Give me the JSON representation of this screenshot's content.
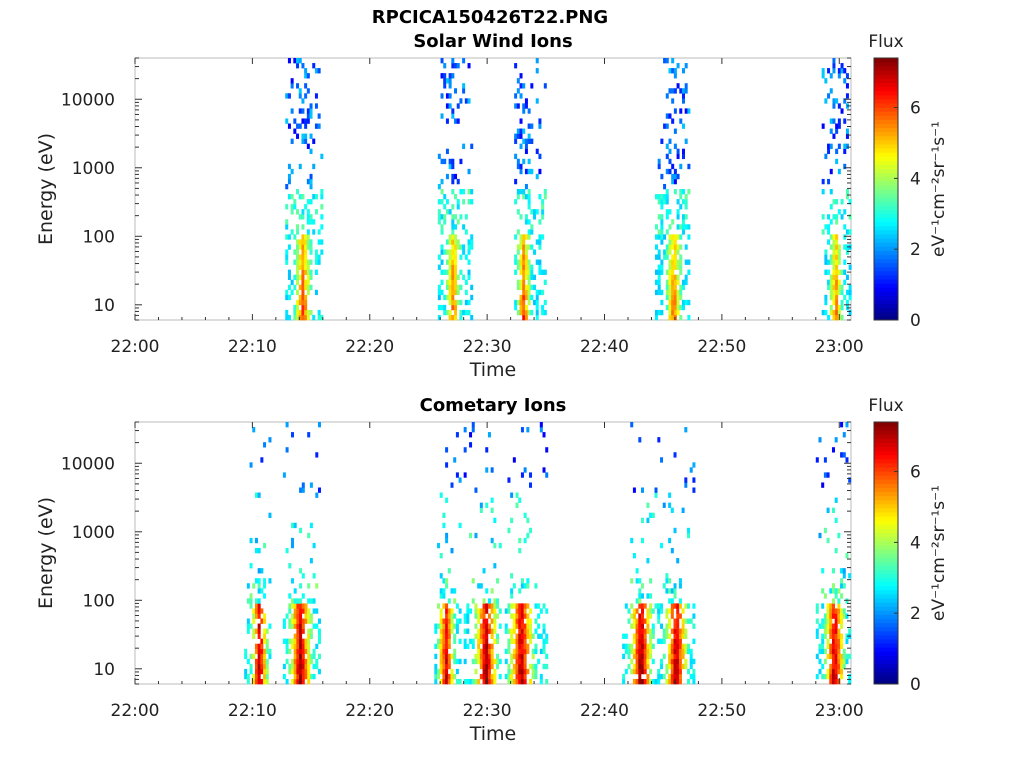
{
  "figure_title": "RPCICA150426T22.PNG",
  "chart_data": [
    {
      "type": "heatmap",
      "title": "Solar Wind Ions",
      "xlabel": "Time",
      "ylabel": "Energy (eV)",
      "x_ticks": [
        "22:00",
        "22:10",
        "22:20",
        "22:30",
        "22:40",
        "22:50",
        "23:00"
      ],
      "x_range_minutes": [
        0,
        61
      ],
      "y_scale": "log",
      "y_ticks": [
        10,
        100,
        1000,
        10000
      ],
      "y_tick_labels": [
        "10",
        "100",
        "1000",
        "10000"
      ],
      "y_range": [
        6,
        40000
      ],
      "colorbar": {
        "label": "Flux",
        "units": "eV⁻¹cm⁻²sr⁻¹s⁻¹",
        "range": [
          0,
          7.4
        ],
        "ticks": [
          0,
          2,
          4,
          6
        ],
        "colormap": "jet"
      },
      "bursts": [
        {
          "start_min": 12.8,
          "end_min": 16.0,
          "core_min": 14.2,
          "peak_flux": 5.8
        },
        {
          "start_min": 25.8,
          "end_min": 28.6,
          "core_min": 27.0,
          "peak_flux": 5.5
        },
        {
          "start_min": 32.3,
          "end_min": 35.0,
          "core_min": 33.0,
          "peak_flux": 5.8
        },
        {
          "start_min": 44.3,
          "end_min": 47.2,
          "core_min": 45.8,
          "peak_flux": 5.6
        },
        {
          "start_min": 58.5,
          "end_min": 61.0,
          "core_min": 59.6,
          "peak_flux": 5.4
        }
      ]
    },
    {
      "type": "heatmap",
      "title": "Cometary Ions",
      "xlabel": "Time",
      "ylabel": "Energy (eV)",
      "x_ticks": [
        "22:00",
        "22:10",
        "22:20",
        "22:30",
        "22:40",
        "22:50",
        "23:00"
      ],
      "x_range_minutes": [
        0,
        61
      ],
      "y_scale": "log",
      "y_ticks": [
        10,
        100,
        1000,
        10000
      ],
      "y_tick_labels": [
        "10",
        "100",
        "1000",
        "10000"
      ],
      "y_range": [
        6,
        40000
      ],
      "colorbar": {
        "label": "Flux",
        "units": "eV⁻¹cm⁻²sr⁻¹s⁻¹",
        "range": [
          0,
          7.4
        ],
        "ticks": [
          0,
          2,
          4,
          6
        ],
        "colormap": "jet"
      },
      "bursts": [
        {
          "start_min": 9.3,
          "end_min": 11.5,
          "core_min": 10.5,
          "peak_flux": 7.0
        },
        {
          "start_min": 12.6,
          "end_min": 15.6,
          "core_min": 14.0,
          "peak_flux": 7.0
        },
        {
          "start_min": 25.5,
          "end_min": 27.8,
          "core_min": 26.4,
          "peak_flux": 6.6
        },
        {
          "start_min": 28.0,
          "end_min": 31.2,
          "core_min": 29.8,
          "peak_flux": 7.0
        },
        {
          "start_min": 31.5,
          "end_min": 35.0,
          "core_min": 32.8,
          "peak_flux": 6.9
        },
        {
          "start_min": 41.5,
          "end_min": 44.5,
          "core_min": 43.0,
          "peak_flux": 7.2
        },
        {
          "start_min": 44.5,
          "end_min": 47.5,
          "core_min": 46.0,
          "peak_flux": 7.0
        },
        {
          "start_min": 58.0,
          "end_min": 60.8,
          "core_min": 59.5,
          "peak_flux": 6.8
        }
      ]
    }
  ]
}
